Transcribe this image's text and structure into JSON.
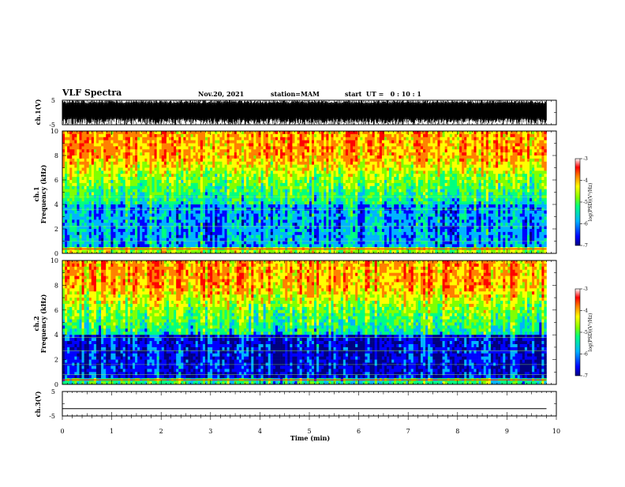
{
  "header": {
    "title": "VLF Spectra",
    "date": "Nov.20, 2021",
    "station": "station=MAM",
    "start_ut": "start  UT =   0 : 10 : 1"
  },
  "colors": {
    "spectrogram_scale": [
      "#000080",
      "#0000ff",
      "#00b4ff",
      "#00ff80",
      "#80ff00",
      "#ffff00",
      "#ff8000",
      "#ff0000",
      "#ffffff"
    ],
    "waveform": "#000000"
  },
  "chart_data": [
    {
      "type": "line",
      "panel": "ch1-waveform",
      "ylabel": "ch.1(V)",
      "ylim": [
        -5,
        5
      ],
      "yticks": [
        "5",
        "-5"
      ],
      "x_range_min": [
        0,
        9.8
      ],
      "description_values": {
        "peak_to_peak_V": 10,
        "mean_V": 0
      }
    },
    {
      "type": "heatmap",
      "panel": "ch1-spectrogram",
      "ylabel": "ch.1\nFrequency (kHz)",
      "ylabel_lines": [
        "ch.1",
        "Frequency (kHz)"
      ],
      "ylim": [
        0,
        10
      ],
      "yticks": [
        "0",
        "2",
        "4",
        "6",
        "8",
        "10"
      ],
      "colorbar": {
        "label": "log(PSD)(V²/Hz)",
        "ticks": [
          "-3",
          "-4",
          "-5",
          "-6",
          "-7"
        ],
        "range": [
          -7,
          -3
        ]
      },
      "x_range_min": [
        0,
        9.8
      ]
    },
    {
      "type": "heatmap",
      "panel": "ch2-spectrogram",
      "ylabel_lines": [
        "ch.2",
        "Frequency (kHz)"
      ],
      "ylim": [
        0,
        10
      ],
      "yticks": [
        "0",
        "2",
        "4",
        "6",
        "8",
        "10"
      ],
      "colorbar": {
        "label": "log(PSD)(V²/Hz)",
        "ticks": [
          "-3",
          "-4",
          "-5",
          "-6",
          "-7"
        ],
        "range": [
          -7,
          -3
        ]
      },
      "x_range_min": [
        0,
        9.8
      ]
    },
    {
      "type": "line",
      "panel": "ch3-waveform",
      "ylabel": "ch.3(V)",
      "ylim": [
        -5,
        5
      ],
      "yticks": [
        "5",
        "-5"
      ],
      "series": [
        {
          "x": [
            0,
            9.8
          ],
          "y": [
            -2,
            -2
          ]
        }
      ]
    }
  ],
  "xaxis": {
    "label": "Time (min)",
    "xlim": [
      0,
      10
    ],
    "ticks": [
      "0",
      "1",
      "2",
      "3",
      "4",
      "5",
      "6",
      "7",
      "8",
      "9",
      "10"
    ]
  }
}
